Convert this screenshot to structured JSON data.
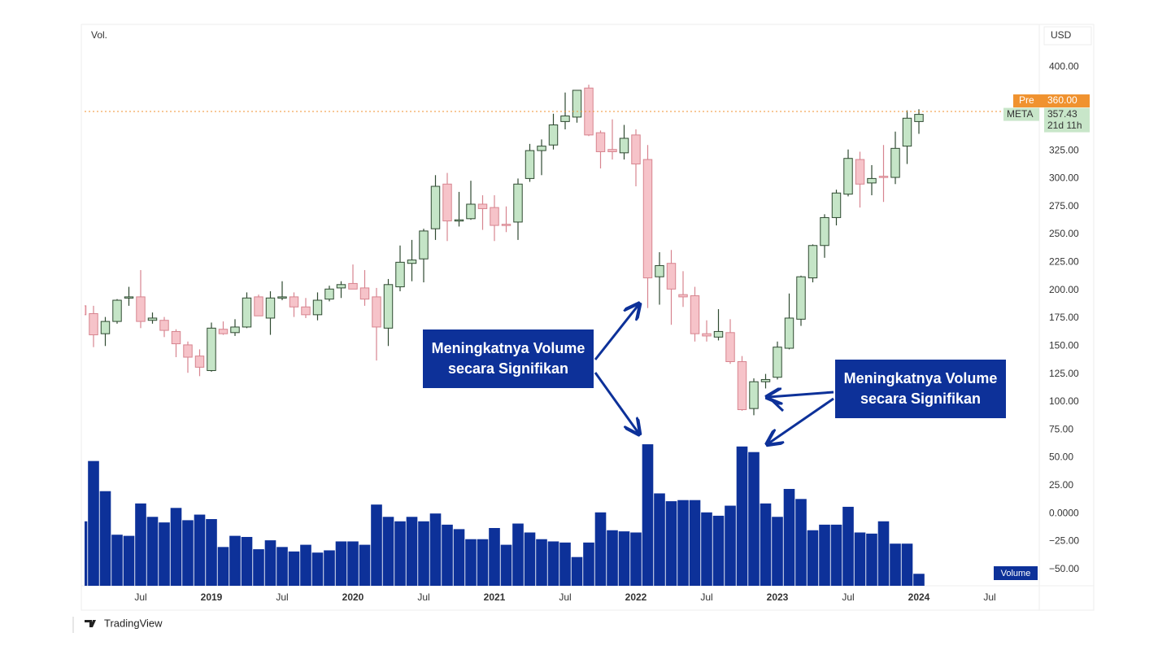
{
  "chart_data": {
    "type": "candlestick",
    "pane_label": "Vol.",
    "currency": "USD",
    "watermark": "TradingView",
    "x": [
      "2018-02",
      "2018-03",
      "2018-04",
      "2018-05",
      "2018-06",
      "2018-07",
      "2018-08",
      "2018-09",
      "2018-10",
      "2018-11",
      "2018-12",
      "2019-01",
      "2019-02",
      "2019-03",
      "2019-04",
      "2019-05",
      "2019-06",
      "2019-07",
      "2019-08",
      "2019-09",
      "2019-10",
      "2019-11",
      "2019-12",
      "2020-01",
      "2020-02",
      "2020-03",
      "2020-04",
      "2020-05",
      "2020-06",
      "2020-07",
      "2020-08",
      "2020-09",
      "2020-10",
      "2020-11",
      "2020-12",
      "2021-01",
      "2021-02",
      "2021-03",
      "2021-04",
      "2021-05",
      "2021-06",
      "2021-07",
      "2021-08",
      "2021-09",
      "2021-10",
      "2021-11",
      "2021-12",
      "2022-01",
      "2022-02",
      "2022-03",
      "2022-04",
      "2022-05",
      "2022-06",
      "2022-07",
      "2022-08",
      "2022-09",
      "2022-10",
      "2022-11",
      "2022-12",
      "2023-01",
      "2023-02",
      "2023-03",
      "2023-04",
      "2023-05",
      "2023-06",
      "2023-07",
      "2023-08",
      "2023-09",
      "2023-10",
      "2023-11",
      "2023-12",
      "2024-01"
    ],
    "series": [
      {
        "name": "META",
        "up_color": "#c5e5c7",
        "up_border": "#2f4a31",
        "down_color": "#f6c3c9",
        "down_border": "#d7848f",
        "open": [
          186,
          179,
          161,
          172,
          193,
          194,
          173,
          173,
          163,
          151,
          141,
          128,
          165,
          162,
          167,
          194,
          175,
          194,
          194,
          185,
          178,
          192,
          202,
          206,
          202,
          194,
          166,
          203,
          224,
          228,
          255,
          295,
          262,
          264,
          277,
          274,
          259,
          261,
          300,
          325,
          330,
          351,
          355,
          381,
          341,
          326,
          323,
          339,
          317,
          212,
          224,
          196,
          195,
          161,
          158,
          162,
          136,
          94,
          118,
          122,
          148,
          174,
          211,
          240,
          265,
          286,
          317,
          296,
          302,
          301,
          329,
          351
        ],
        "high": [
          195,
          186,
          176,
          192,
          203,
          218,
          180,
          176,
          165,
          154,
          147,
          171,
          172,
          174,
          198,
          196,
          199,
          208,
          198,
          193,
          198,
          204,
          208,
          223,
          218,
          202,
          210,
          240,
          245,
          255,
          303,
          305,
          288,
          298,
          285,
          285,
          275,
          300,
          331,
          335,
          358,
          377,
          379,
          384,
          343,
          353,
          348,
          344,
          330,
          234,
          236,
          217,
          203,
          173,
          183,
          174,
          141,
          121,
          125,
          154,
          197,
          213,
          241,
          268,
          290,
          326,
          324,
          312,
          330,
          342,
          361,
          362
        ],
        "low": [
          167,
          149,
          150,
          170,
          186,
          166,
          170,
          158,
          140,
          126,
          123,
          127,
          160,
          159,
          166,
          177,
          160,
          191,
          176,
          175,
          173,
          190,
          193,
          201,
          186,
          137,
          150,
          199,
          208,
          207,
          245,
          244,
          257,
          263,
          254,
          244,
          252,
          245,
          297,
          303,
          326,
          344,
          350,
          338,
          309,
          317,
          317,
          293,
          184,
          187,
          169,
          185,
          154,
          154,
          155,
          134,
          92,
          88,
          112,
          120,
          147,
          168,
          207,
          229,
          258,
          284,
          274,
          285,
          279,
          295,
          313,
          340
        ],
        "close": [
          178,
          160,
          172,
          191,
          194,
          172,
          175,
          164,
          152,
          140,
          131,
          166,
          161,
          167,
          193,
          177,
          193,
          194,
          185,
          178,
          191,
          201,
          205,
          201,
          192,
          167,
          205,
          225,
          227,
          253,
          293,
          262,
          263,
          277,
          273,
          258,
          258,
          295,
          325,
          329,
          348,
          356,
          379,
          339,
          324,
          324,
          336,
          313,
          211,
          222,
          201,
          194,
          161,
          159,
          163,
          136,
          93,
          118,
          120,
          149,
          175,
          212,
          240,
          265,
          287,
          318,
          295,
          300,
          301,
          327,
          354,
          357.43
        ]
      }
    ],
    "volume": {
      "name": "Volume",
      "color": "#0d3199",
      "values": [
        -7,
        47,
        20,
        -19,
        -20,
        9,
        -3,
        -8,
        5,
        -6,
        -1,
        -5,
        -30,
        -20,
        -21,
        -32,
        -24,
        -30,
        -34,
        -28,
        -35,
        -33,
        -25,
        -25,
        -28,
        8,
        -3,
        -7,
        -3,
        -7,
        0,
        -10,
        -14,
        -23,
        -23,
        -13,
        -28,
        -9,
        -17,
        -23,
        -25,
        -26,
        -39,
        -26,
        1,
        -15,
        -16,
        -17,
        62,
        18,
        11,
        12,
        12,
        1,
        -2,
        7,
        60,
        55,
        9,
        -3,
        22,
        13,
        -15,
        -10,
        -10,
        6,
        -17,
        -18,
        -7,
        -27,
        -27,
        -54
      ]
    },
    "xlim": [
      "2018-02",
      "2024-11"
    ],
    "xticks": [
      {
        "value": "2018-07",
        "label": "Jul"
      },
      {
        "value": "2019-01",
        "label": "2019"
      },
      {
        "value": "2019-07",
        "label": "Jul"
      },
      {
        "value": "2020-01",
        "label": "2020"
      },
      {
        "value": "2020-07",
        "label": "Jul"
      },
      {
        "value": "2021-01",
        "label": "2021"
      },
      {
        "value": "2021-07",
        "label": "Jul"
      },
      {
        "value": "2022-01",
        "label": "2022"
      },
      {
        "value": "2022-07",
        "label": "Jul"
      },
      {
        "value": "2023-01",
        "label": "2023"
      },
      {
        "value": "2023-07",
        "label": "Jul"
      },
      {
        "value": "2024-01",
        "label": "2024"
      },
      {
        "value": "2024-07",
        "label": "Jul"
      }
    ],
    "ylim": [
      -64,
      438
    ],
    "yticks": [
      {
        "value": 400,
        "label": "400.00"
      },
      {
        "value": 325,
        "label": "325.00"
      },
      {
        "value": 300,
        "label": "300.00"
      },
      {
        "value": 275,
        "label": "275.00"
      },
      {
        "value": 250,
        "label": "250.00"
      },
      {
        "value": 225,
        "label": "225.00"
      },
      {
        "value": 200,
        "label": "200.00"
      },
      {
        "value": 175,
        "label": "175.00"
      },
      {
        "value": 150,
        "label": "150.00"
      },
      {
        "value": 125,
        "label": "125.00"
      },
      {
        "value": 100,
        "label": "100.00"
      },
      {
        "value": 75,
        "label": "75.00"
      },
      {
        "value": 50,
        "label": "50.00"
      },
      {
        "value": 25,
        "label": "25.00"
      },
      {
        "value": 0,
        "label": "0.0000"
      },
      {
        "value": -25,
        "label": "−25.00"
      },
      {
        "value": -50,
        "label": "−50.00"
      }
    ],
    "price_line": {
      "name": "Pre",
      "value": 360,
      "value_label": "360.00",
      "color": "#f0922f"
    },
    "last_price": {
      "value": 357.43,
      "countdown": "21d 11h",
      "color": "#c8e6c9"
    },
    "annotations": [
      {
        "text": "Meningkatnya Volume secara Signifikan"
      },
      {
        "text": "Meningkatnya Volume secara Signifikan"
      }
    ]
  }
}
